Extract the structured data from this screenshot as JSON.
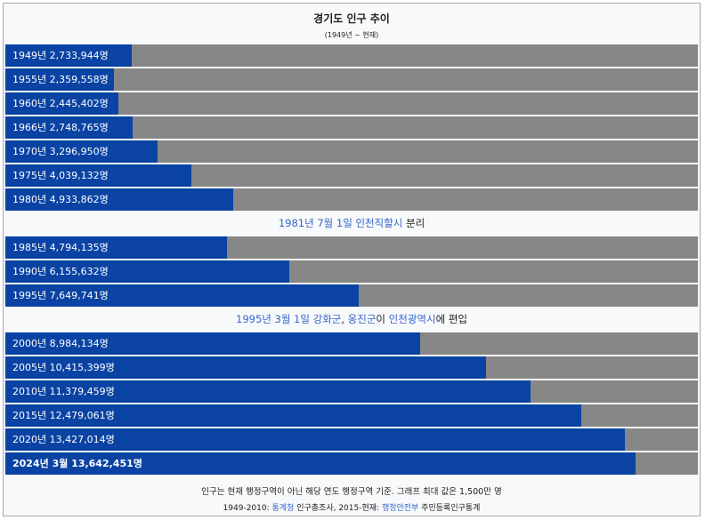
{
  "title": "경기도 인구 추이",
  "subtitle": "(1949년 ~ 현재)",
  "colors": {
    "bar": "#0a43a3",
    "track": "#878787",
    "link": "#3366cc",
    "background": "#f8f9fa"
  },
  "chart_data": {
    "type": "bar",
    "orientation": "horizontal",
    "title": "경기도 인구 추이",
    "subtitle": "(1949년 ~ 현재)",
    "xlim": [
      0,
      15000000
    ],
    "rows": [
      {
        "kind": "bar",
        "label": "1949년 2,733,944명",
        "value": 2733944
      },
      {
        "kind": "bar",
        "label": "1955년 2,359,558명",
        "value": 2359558
      },
      {
        "kind": "bar",
        "label": "1960년 2,445,402명",
        "value": 2445402
      },
      {
        "kind": "bar",
        "label": "1966년 2,748,765명",
        "value": 2748765
      },
      {
        "kind": "bar",
        "label": "1970년 3,296,950명",
        "value": 3296950
      },
      {
        "kind": "bar",
        "label": "1975년 4,039,132명",
        "value": 4039132
      },
      {
        "kind": "bar",
        "label": "1980년 4,933,862명",
        "value": 4933862
      },
      {
        "kind": "note",
        "parts": [
          {
            "text": "1981년 7월 1일 ",
            "link": true
          },
          {
            "text": "인천직할시",
            "link": true
          },
          {
            "text": " 분리",
            "link": false
          }
        ]
      },
      {
        "kind": "bar",
        "label": "1985년 4,794,135명",
        "value": 4794135
      },
      {
        "kind": "bar",
        "label": "1990년 6,155,632명",
        "value": 6155632
      },
      {
        "kind": "bar",
        "label": "1995년 7,649,741명",
        "value": 7649741
      },
      {
        "kind": "note",
        "parts": [
          {
            "text": "1995년 3월 1일 ",
            "link": true
          },
          {
            "text": "강화군",
            "link": true
          },
          {
            "text": ", ",
            "link": false
          },
          {
            "text": "옹진군",
            "link": true
          },
          {
            "text": "이 ",
            "link": false
          },
          {
            "text": "인천광역시",
            "link": true
          },
          {
            "text": "에 편입",
            "link": false
          }
        ]
      },
      {
        "kind": "bar",
        "label": "2000년 8,984,134명",
        "value": 8984134
      },
      {
        "kind": "bar",
        "label": "2005년 10,415,399명",
        "value": 10415399
      },
      {
        "kind": "bar",
        "label": "2010년 11,379,459명",
        "value": 11379459
      },
      {
        "kind": "bar",
        "label": "2015년 12,479,061명",
        "value": 12479061
      },
      {
        "kind": "bar",
        "label": "2020년 13,427,014명",
        "value": 13427014
      },
      {
        "kind": "bar",
        "label": "2024년 3월 13,642,451명",
        "value": 13642451,
        "bold": true
      }
    ]
  },
  "footer": {
    "note": "인구는 현재 행정구역이 아닌 해당 연도 행정구역 기준. 그래프 최대 값은 1,500만 명",
    "source_parts": [
      {
        "text": "1949-2010: ",
        "link": false
      },
      {
        "text": "통계청",
        "link": true
      },
      {
        "text": " 인구총조사, 2015-현재: ",
        "link": false
      },
      {
        "text": "행정안전부",
        "link": true
      },
      {
        "text": " 주민등록인구통계",
        "link": false
      }
    ]
  }
}
